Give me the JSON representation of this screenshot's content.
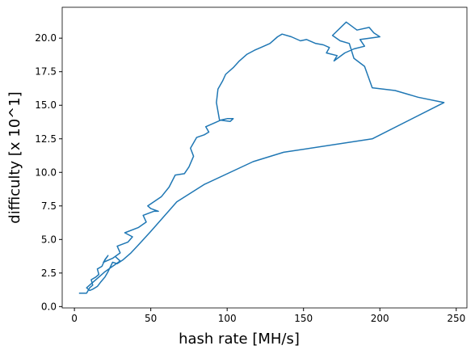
{
  "chart_data": {
    "type": "line",
    "xlabel": "hash rate [MH/s]",
    "ylabel": "difficulty [x 10^1]",
    "xlim": [
      -8,
      257
    ],
    "ylim": [
      -0.1,
      22.3
    ],
    "xticks": [
      0,
      50,
      100,
      150,
      200,
      250
    ],
    "yticks": [
      {
        "value": 0,
        "label": "0.0"
      },
      2.5,
      {
        "value": 5,
        "label": "5.0"
      },
      7.5,
      {
        "value": 10,
        "label": "10.0"
      },
      12.5,
      {
        "value": 15,
        "label": "15.0"
      },
      17.5,
      {
        "value": 20,
        "label": "20.0"
      }
    ],
    "series": [
      {
        "color": "#1f77b4",
        "x": [
          3,
          8,
          10,
          12,
          11,
          14,
          16,
          15,
          18,
          20,
          22,
          19,
          25,
          30,
          28,
          35,
          38,
          33,
          42,
          47,
          45,
          52,
          55,
          50,
          48,
          57,
          62,
          66,
          72,
          75,
          78,
          76,
          80,
          85,
          88,
          86,
          92,
          96,
          100,
          104,
          102,
          95,
          93,
          94,
          97,
          99,
          104,
          108,
          113,
          118,
          122,
          128,
          133,
          136,
          142,
          148,
          152,
          158,
          163,
          167,
          165,
          172,
          170,
          177,
          183,
          190,
          187,
          200,
          196,
          193,
          185,
          178,
          169,
          174,
          180,
          183,
          190,
          195,
          210,
          225,
          242,
          195,
          137,
          117,
          85,
          67,
          50,
          42,
          37,
          32,
          28,
          25,
          22,
          20,
          17,
          15,
          12,
          10,
          8,
          12,
          16,
          20,
          25,
          30,
          27
        ],
        "values": [
          1.0,
          1.0,
          1.4,
          1.6,
          2.0,
          2.2,
          2.4,
          2.8,
          3.0,
          3.5,
          3.8,
          3.3,
          3.6,
          4.0,
          4.5,
          4.8,
          5.2,
          5.5,
          5.9,
          6.3,
          6.8,
          7.1,
          7.1,
          7.3,
          7.5,
          8.2,
          8.9,
          9.8,
          9.9,
          10.4,
          11.2,
          11.8,
          12.6,
          12.8,
          13.0,
          13.4,
          13.7,
          13.9,
          14.0,
          14.0,
          13.8,
          13.9,
          15.2,
          16.2,
          16.8,
          17.3,
          17.8,
          18.3,
          18.8,
          19.1,
          19.3,
          19.6,
          20.1,
          20.3,
          20.1,
          19.8,
          19.9,
          19.6,
          19.5,
          19.3,
          18.9,
          18.7,
          18.3,
          18.9,
          19.2,
          19.4,
          19.9,
          20.1,
          20.4,
          20.8,
          20.6,
          21.2,
          20.2,
          19.8,
          19.6,
          18.5,
          17.9,
          16.3,
          16.1,
          15.6,
          15.2,
          12.5,
          11.5,
          10.8,
          9.1,
          7.8,
          5.6,
          4.6,
          4.0,
          3.5,
          3.2,
          3.3,
          2.6,
          2.2,
          1.8,
          1.5,
          1.3,
          1.2,
          1.4,
          1.8,
          2.2,
          2.6,
          3.0,
          3.4,
          3.7
        ]
      }
    ]
  }
}
